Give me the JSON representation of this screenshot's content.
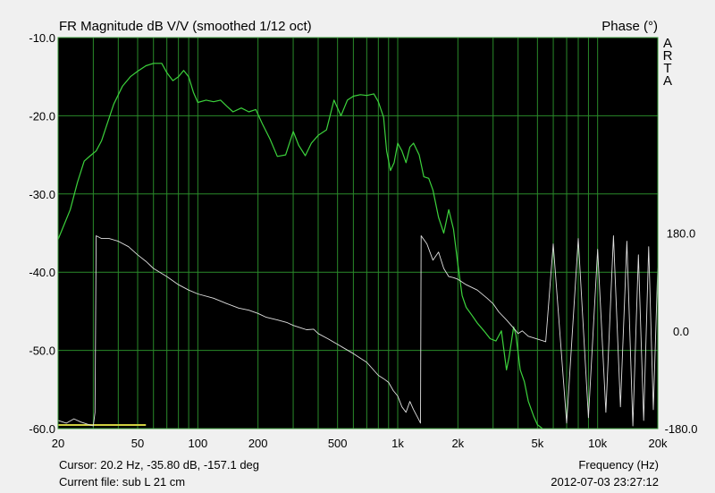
{
  "header": {
    "title": "FR Magnitude dB V/V (smoothed 1/12 oct)",
    "phase_label": "Phase (°)",
    "brand_letters": [
      "A",
      "R",
      "T",
      "A"
    ]
  },
  "footer": {
    "cursor": "Cursor: 20.2 Hz, -35.80 dB, -157.1 deg",
    "current_file": "Current file: sub L 21 cm",
    "x_label": "Frequency (Hz)",
    "timestamp": "2012-07-03  23:27:12"
  },
  "colors": {
    "plot_bg": "#000000",
    "grid": "#2a8a2a",
    "magnitude": "#3cd23c",
    "phase": "#e0e0e0",
    "marker": "#d0d040"
  },
  "chart_data": {
    "type": "line",
    "x_scale": "log",
    "xlim": [
      20,
      20000
    ],
    "ylim": [
      -60,
      -10
    ],
    "y2lim": [
      -180,
      180
    ],
    "grid": true,
    "x_ticks": [
      {
        "v": 20,
        "label": "20"
      },
      {
        "v": 50,
        "label": "50"
      },
      {
        "v": 100,
        "label": "100"
      },
      {
        "v": 200,
        "label": "200"
      },
      {
        "v": 500,
        "label": "500"
      },
      {
        "v": 1000,
        "label": "1k"
      },
      {
        "v": 2000,
        "label": "2k"
      },
      {
        "v": 5000,
        "label": "5k"
      },
      {
        "v": 10000,
        "label": "10k"
      },
      {
        "v": 20000,
        "label": "20k"
      }
    ],
    "x_minor_ticks": [
      30,
      40,
      60,
      70,
      80,
      90,
      300,
      400,
      600,
      700,
      800,
      900,
      3000,
      4000,
      6000,
      7000,
      8000,
      9000
    ],
    "y_ticks": [
      {
        "v": -10,
        "label": "-10.0"
      },
      {
        "v": -20,
        "label": "-20.0"
      },
      {
        "v": -30,
        "label": "-30.0"
      },
      {
        "v": -40,
        "label": "-40.0"
      },
      {
        "v": -50,
        "label": "-50.0"
      },
      {
        "v": -60,
        "label": "-60.0"
      }
    ],
    "y2_ticks": [
      {
        "v": 180,
        "label": "180.0"
      },
      {
        "v": 0,
        "label": "0.0"
      },
      {
        "v": -180,
        "label": "-180.0"
      }
    ],
    "series": [
      {
        "name": "",
        "axis": "left",
        "x": [
          20,
          21,
          23,
          25,
          27,
          29,
          31,
          33,
          35,
          38,
          42,
          46,
          50,
          55,
          60,
          66,
          70,
          75,
          80,
          85,
          90,
          95,
          100,
          110,
          120,
          130,
          140,
          150,
          165,
          180,
          195,
          210,
          230,
          250,
          275,
          300,
          320,
          345,
          370,
          400,
          440,
          480,
          520,
          560,
          600,
          650,
          700,
          760,
          800,
          850,
          880,
          920,
          960,
          1000,
          1050,
          1100,
          1150,
          1200,
          1280,
          1350,
          1430,
          1500,
          1600,
          1700,
          1800,
          1900,
          2000,
          2100,
          2200,
          2350,
          2500,
          2700,
          2900,
          3100,
          3300,
          3500,
          3600,
          3800,
          3900,
          4100,
          4300,
          4500,
          4800,
          5000,
          5300
        ],
        "values": [
          -35.8,
          -34.5,
          -32.0,
          -28.5,
          -25.8,
          -25.1,
          -24.5,
          -23.2,
          -21.2,
          -18.5,
          -16.2,
          -15.0,
          -14.3,
          -13.6,
          -13.3,
          -13.3,
          -14.5,
          -15.5,
          -15.0,
          -14.2,
          -15.0,
          -17.0,
          -18.3,
          -18.0,
          -18.2,
          -18.0,
          -18.8,
          -19.5,
          -19.0,
          -19.5,
          -19.2,
          -21.0,
          -23.0,
          -25.2,
          -25.0,
          -22.0,
          -23.8,
          -25.1,
          -23.5,
          -22.5,
          -21.8,
          -18.0,
          -20.0,
          -18.0,
          -17.5,
          -17.3,
          -17.4,
          -17.2,
          -18.2,
          -20.2,
          -24.5,
          -27.0,
          -26.0,
          -23.5,
          -24.5,
          -26.0,
          -24.0,
          -23.5,
          -25.0,
          -27.8,
          -28.0,
          -29.5,
          -33.0,
          -35.0,
          -32.0,
          -34.5,
          -39.0,
          -43.0,
          -44.5,
          -45.5,
          -46.5,
          -47.5,
          -48.5,
          -48.8,
          -47.5,
          -52.5,
          -51.0,
          -47.0,
          -48.0,
          -52.5,
          -54.0,
          -56.5,
          -58.5,
          -59.5,
          -60.0
        ]
      },
      {
        "name": "",
        "axis": "right",
        "x": [
          20,
          22,
          24,
          26,
          28,
          30,
          30.6,
          31,
          33,
          36,
          40,
          45,
          50,
          55,
          60,
          70,
          80,
          90,
          100,
          120,
          140,
          160,
          180,
          200,
          220,
          250,
          280,
          300,
          330,
          350,
          380,
          400,
          450,
          500,
          600,
          700,
          800,
          850,
          900,
          950,
          1000,
          1050,
          1100,
          1150,
          1200,
          1260,
          1300,
          1310,
          1400,
          1500,
          1600,
          1700,
          1800,
          1900,
          2000,
          2200,
          2500,
          2800,
          3000,
          3200,
          3500,
          3800,
          4000,
          4200,
          4500,
          5000,
          5500,
          6000,
          7000,
          8000,
          9000,
          10000,
          11000,
          12000,
          13000,
          14000,
          15000,
          16000,
          17000,
          18000,
          19000,
          20000
        ],
        "values": [
          -165,
          -170,
          -162,
          -168,
          -172,
          -175,
          -150,
          175,
          170,
          170,
          165,
          155,
          140,
          128,
          115,
          100,
          85,
          75,
          68,
          60,
          50,
          42,
          38,
          32,
          25,
          20,
          15,
          10,
          5,
          2,
          3,
          -5,
          -15,
          -25,
          -42,
          -58,
          -82,
          -88,
          -95,
          -110,
          -120,
          -140,
          -150,
          -130,
          -145,
          -160,
          -170,
          175,
          160,
          130,
          145,
          115,
          100,
          98,
          95,
          85,
          75,
          60,
          50,
          35,
          20,
          5,
          -5,
          0,
          -10,
          -15,
          -20,
          160,
          -170,
          170,
          -160,
          150,
          -150,
          175,
          -140,
          165,
          -175,
          140,
          -165,
          155,
          -145,
          120
        ]
      }
    ]
  }
}
